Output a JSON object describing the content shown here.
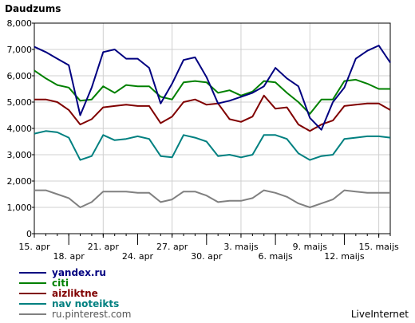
{
  "chart_data": {
    "type": "line",
    "title": "Daudzums",
    "ylim": [
      0,
      8000
    ],
    "yticks": [
      "0",
      "1,000",
      "2,000",
      "3,000",
      "4,000",
      "5,000",
      "6,000",
      "7,000",
      "8,000"
    ],
    "xtick_labels_row1": [
      {
        "label": "15. apr",
        "index": 0
      },
      {
        "label": "21. apr",
        "index": 6
      },
      {
        "label": "27. apr",
        "index": 12
      },
      {
        "label": "3. maijs",
        "index": 18
      },
      {
        "label": "9. maijs",
        "index": 24
      },
      {
        "label": "15. maijs",
        "index": 30
      }
    ],
    "xtick_labels_row2": [
      {
        "label": "18. apr",
        "index": 3
      },
      {
        "label": "24. apr",
        "index": 9
      },
      {
        "label": "30. apr",
        "index": 15
      },
      {
        "label": "6. maijs",
        "index": 21
      },
      {
        "label": "12. maijs",
        "index": 27
      }
    ],
    "grid": true,
    "legend_placement": "bottom-left",
    "series": [
      {
        "name": "yandex.ru",
        "color": "#000080",
        "values": [
          7100,
          6900,
          6650,
          6400,
          4500,
          5550,
          6900,
          7000,
          6650,
          6650,
          6300,
          4950,
          5700,
          6600,
          6700,
          5950,
          4950,
          5050,
          5200,
          5350,
          5600,
          6300,
          5900,
          5600,
          4400,
          3950,
          5000,
          5550,
          6650,
          6950,
          7150,
          6500
        ]
      },
      {
        "name": "citi",
        "color": "#008000",
        "values": [
          6200,
          5900,
          5650,
          5550,
          5050,
          5100,
          5600,
          5350,
          5650,
          5600,
          5600,
          5200,
          5100,
          5750,
          5800,
          5750,
          5350,
          5450,
          5250,
          5400,
          5800,
          5750,
          5350,
          5000,
          4550,
          5100,
          5100,
          5800,
          5850,
          5700,
          5500,
          5500
        ]
      },
      {
        "name": "aizliktne",
        "color": "#800000",
        "values": [
          5100,
          5100,
          5000,
          4700,
          4150,
          4350,
          4800,
          4850,
          4900,
          4850,
          4850,
          4200,
          4450,
          5000,
          5100,
          4900,
          4950,
          4350,
          4250,
          4450,
          5250,
          4750,
          4800,
          4150,
          3900,
          4150,
          4300,
          4850,
          4900,
          4950,
          4950,
          4700
        ]
      },
      {
        "name": "nav noteikts",
        "color": "#008080",
        "values": [
          3800,
          3900,
          3850,
          3650,
          2800,
          2950,
          3750,
          3550,
          3600,
          3700,
          3600,
          2950,
          2900,
          3750,
          3650,
          3500,
          2950,
          3000,
          2900,
          3000,
          3750,
          3750,
          3600,
          3050,
          2800,
          2950,
          3000,
          3600,
          3650,
          3700,
          3700,
          3650
        ]
      },
      {
        "name": "ru.pinterest.com",
        "color": "#808080",
        "values": [
          1650,
          1650,
          1500,
          1350,
          1000,
          1200,
          1600,
          1600,
          1600,
          1550,
          1550,
          1200,
          1300,
          1600,
          1600,
          1450,
          1200,
          1250,
          1250,
          1350,
          1650,
          1550,
          1400,
          1150,
          1000,
          1150,
          1300,
          1650,
          1600,
          1550,
          1550,
          1550
        ]
      }
    ]
  },
  "watermark": "LiveInternet"
}
